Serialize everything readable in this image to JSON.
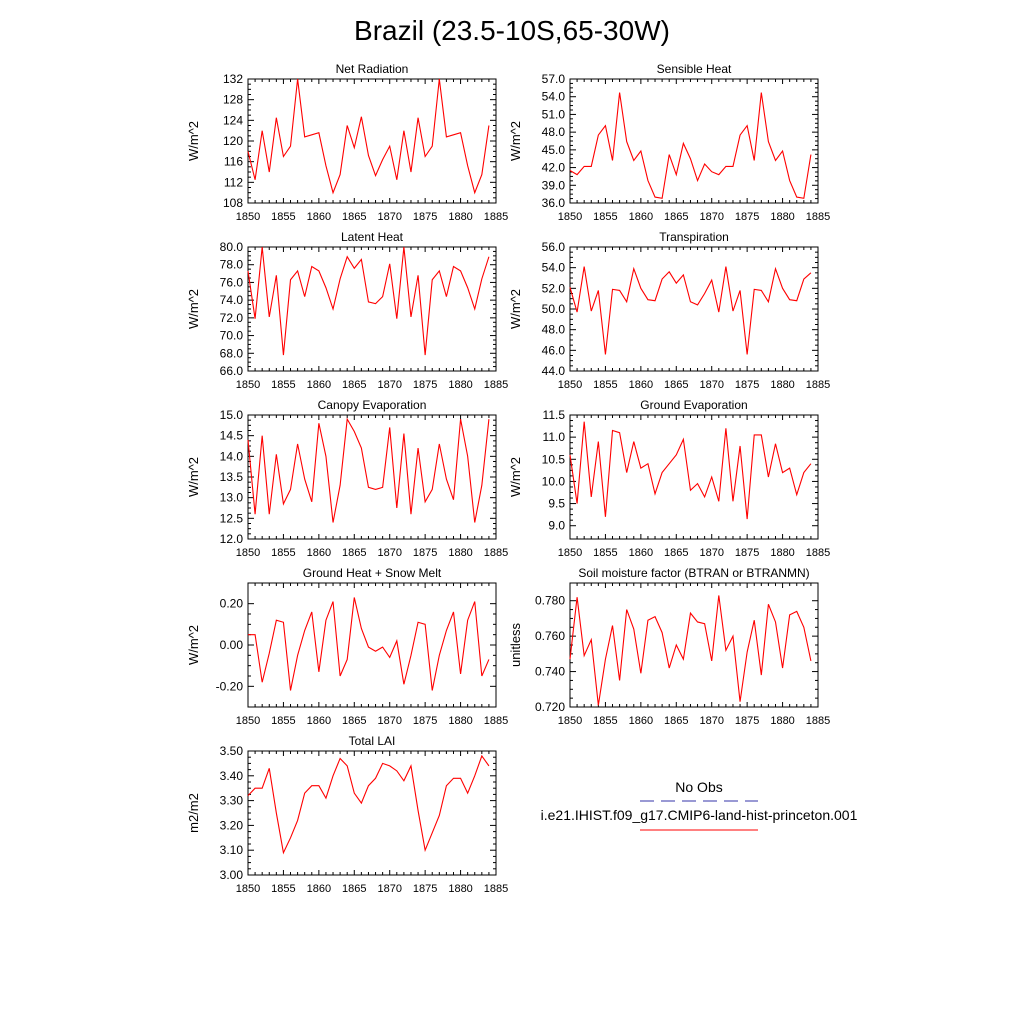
{
  "figure": {
    "title": "Brazil (23.5-10S,65-30W)"
  },
  "legend": {
    "entries": [
      {
        "label": "No Obs",
        "color": "#3333aa",
        "dash": true
      },
      {
        "label": "i.e21.IHIST.f09_g17.CMIP6-land-hist-princeton.001",
        "color": "#ff0000",
        "dash": false
      }
    ]
  },
  "chart_data": [
    {
      "type": "line",
      "title": "Net Radiation",
      "ylabel": "W/m^2",
      "x": [
        1850,
        1851,
        1852,
        1853,
        1854,
        1855,
        1856,
        1857,
        1858,
        1859,
        1860,
        1861,
        1862,
        1863,
        1864,
        1865,
        1866,
        1867,
        1868,
        1869,
        1870,
        1871,
        1872,
        1873,
        1874,
        1875,
        1876,
        1877,
        1878,
        1879,
        1880,
        1881,
        1882,
        1883,
        1884
      ],
      "series": [
        {
          "color": "#ff0000",
          "values": [
            118,
            112.5,
            122,
            114,
            124.5,
            117,
            119,
            132,
            120.8,
            121.2,
            121.6,
            115.2,
            110,
            113.5,
            123,
            118.7,
            124.7,
            117.2,
            113.3,
            116.4,
            119,
            112.5,
            122,
            114,
            124.5,
            117,
            119,
            132,
            120.8,
            121.2,
            121.6,
            115.2,
            110,
            113.5,
            123
          ]
        }
      ],
      "xlim": [
        1850,
        1885
      ],
      "ylim": [
        108,
        132
      ],
      "xticks": [
        "1850",
        "1855",
        "1860",
        "1865",
        "1870",
        "1875",
        "1880",
        "1885"
      ],
      "yticks": [
        "108",
        "112",
        "116",
        "120",
        "124",
        "128",
        "132"
      ]
    },
    {
      "type": "line",
      "title": "Sensible Heat",
      "ylabel": "W/m^2",
      "x": [
        1850,
        1851,
        1852,
        1853,
        1854,
        1855,
        1856,
        1857,
        1858,
        1859,
        1860,
        1861,
        1862,
        1863,
        1864,
        1865,
        1866,
        1867,
        1868,
        1869,
        1870,
        1871,
        1872,
        1873,
        1874,
        1875,
        1876,
        1877,
        1878,
        1879,
        1880,
        1881,
        1882,
        1883,
        1884
      ],
      "series": [
        {
          "color": "#ff0000",
          "values": [
            41.5,
            40.8,
            42.2,
            42.2,
            47.5,
            49.1,
            43.2,
            54.7,
            46.4,
            43.2,
            44.8,
            39.8,
            37,
            36.8,
            44.2,
            40.8,
            46.1,
            43.5,
            39.8,
            42.6,
            41.3,
            40.8,
            42.2,
            42.2,
            47.5,
            49.1,
            43.2,
            54.7,
            46.4,
            43.2,
            44.8,
            39.8,
            37,
            36.8,
            44.2
          ]
        }
      ],
      "xlim": [
        1850,
        1885
      ],
      "ylim": [
        36,
        57
      ],
      "xticks": [
        "1850",
        "1855",
        "1860",
        "1865",
        "1870",
        "1875",
        "1880",
        "1885"
      ],
      "yticks": [
        "36.0",
        "39.0",
        "42.0",
        "45.0",
        "48.0",
        "51.0",
        "54.0",
        "57.0"
      ]
    },
    {
      "type": "line",
      "title": "Latent Heat",
      "ylabel": "W/m^2",
      "x": [
        1850,
        1851,
        1852,
        1853,
        1854,
        1855,
        1856,
        1857,
        1858,
        1859,
        1860,
        1861,
        1862,
        1863,
        1864,
        1865,
        1866,
        1867,
        1868,
        1869,
        1870,
        1871,
        1872,
        1873,
        1874,
        1875,
        1876,
        1877,
        1878,
        1879,
        1880,
        1881,
        1882,
        1883,
        1884
      ],
      "series": [
        {
          "color": "#ff0000",
          "values": [
            77.3,
            71.9,
            80,
            72.1,
            76.8,
            67.8,
            76.3,
            77.3,
            74.4,
            77.8,
            77.3,
            75.4,
            73,
            76.4,
            78.9,
            77.6,
            78.6,
            73.8,
            73.6,
            74.4,
            78.1,
            71.9,
            80,
            72.1,
            76.8,
            67.8,
            76.3,
            77.3,
            74.4,
            77.8,
            77.3,
            75.4,
            73,
            76.4,
            78.9
          ]
        }
      ],
      "xlim": [
        1850,
        1885
      ],
      "ylim": [
        66,
        80
      ],
      "xticks": [
        "1850",
        "1855",
        "1860",
        "1865",
        "1870",
        "1875",
        "1880",
        "1885"
      ],
      "yticks": [
        "66.0",
        "68.0",
        "70.0",
        "72.0",
        "74.0",
        "76.0",
        "78.0",
        "80.0"
      ]
    },
    {
      "type": "line",
      "title": "Transpiration",
      "ylabel": "W/m^2",
      "x": [
        1850,
        1851,
        1852,
        1853,
        1854,
        1855,
        1856,
        1857,
        1858,
        1859,
        1860,
        1861,
        1862,
        1863,
        1864,
        1865,
        1866,
        1867,
        1868,
        1869,
        1870,
        1871,
        1872,
        1873,
        1874,
        1875,
        1876,
        1877,
        1878,
        1879,
        1880,
        1881,
        1882,
        1883,
        1884
      ],
      "series": [
        {
          "color": "#ff0000",
          "values": [
            52.1,
            49.7,
            54.1,
            49.8,
            51.8,
            45.6,
            51.9,
            51.8,
            50.7,
            53.9,
            52,
            50.9,
            50.8,
            52.9,
            53.6,
            52.5,
            53.3,
            50.7,
            50.4,
            51.5,
            52.8,
            49.7,
            54.1,
            49.8,
            51.8,
            45.6,
            51.9,
            51.8,
            50.7,
            53.9,
            52,
            50.9,
            50.8,
            52.9,
            53.5
          ]
        }
      ],
      "xlim": [
        1850,
        1885
      ],
      "ylim": [
        44,
        56
      ],
      "xticks": [
        "1850",
        "1855",
        "1860",
        "1865",
        "1870",
        "1875",
        "1880",
        "1885"
      ],
      "yticks": [
        "44.0",
        "46.0",
        "48.0",
        "50.0",
        "52.0",
        "54.0",
        "56.0"
      ]
    },
    {
      "type": "line",
      "title": "Canopy Evaporation",
      "ylabel": "W/m^2",
      "x": [
        1850,
        1851,
        1852,
        1853,
        1854,
        1855,
        1856,
        1857,
        1858,
        1859,
        1860,
        1861,
        1862,
        1863,
        1864,
        1865,
        1866,
        1867,
        1868,
        1869,
        1870,
        1871,
        1872,
        1873,
        1874,
        1875,
        1876,
        1877,
        1878,
        1879,
        1880,
        1881,
        1882,
        1883,
        1884
      ],
      "series": [
        {
          "color": "#ff0000",
          "values": [
            14.4,
            12.6,
            14.5,
            12.6,
            14.05,
            12.85,
            13.2,
            14.3,
            13.45,
            12.9,
            14.8,
            14,
            12.4,
            13.3,
            14.9,
            14.6,
            14.2,
            13.25,
            13.2,
            13.25,
            14.7,
            12.75,
            14.55,
            12.6,
            14.2,
            12.9,
            13.2,
            14.3,
            13.45,
            12.95,
            14.9,
            14,
            12.4,
            13.3,
            14.9
          ]
        }
      ],
      "xlim": [
        1850,
        1885
      ],
      "ylim": [
        12,
        15
      ],
      "xticks": [
        "1850",
        "1855",
        "1860",
        "1865",
        "1870",
        "1875",
        "1880",
        "1885"
      ],
      "yticks": [
        "12.0",
        "12.5",
        "13.0",
        "13.5",
        "14.0",
        "14.5",
        "15.0"
      ]
    },
    {
      "type": "line",
      "title": "Ground Evaporation",
      "ylabel": "W/m^2",
      "x": [
        1850,
        1851,
        1852,
        1853,
        1854,
        1855,
        1856,
        1857,
        1858,
        1859,
        1860,
        1861,
        1862,
        1863,
        1864,
        1865,
        1866,
        1867,
        1868,
        1869,
        1870,
        1871,
        1872,
        1873,
        1874,
        1875,
        1876,
        1877,
        1878,
        1879,
        1880,
        1881,
        1882,
        1883,
        1884
      ],
      "series": [
        {
          "color": "#ff0000",
          "values": [
            10.6,
            9.5,
            11.35,
            9.65,
            10.9,
            9.2,
            11.15,
            11.1,
            10.2,
            10.9,
            10.3,
            10.4,
            9.72,
            10.2,
            10.4,
            10.6,
            10.95,
            9.8,
            9.95,
            9.65,
            10.1,
            9.55,
            11.2,
            9.55,
            10.8,
            9.15,
            11.05,
            11.05,
            10.1,
            10.85,
            10.2,
            10.3,
            9.7,
            10.2,
            10.4
          ]
        }
      ],
      "xlim": [
        1850,
        1885
      ],
      "ylim": [
        8.7,
        11.5
      ],
      "xticks": [
        "1850",
        "1855",
        "1860",
        "1865",
        "1870",
        "1875",
        "1880",
        "1885"
      ],
      "yticks": [
        "9.0",
        "9.5",
        "10.0",
        "10.5",
        "11.0",
        "11.5"
      ]
    },
    {
      "type": "line",
      "title": "Ground Heat + Snow Melt",
      "ylabel": "W/m^2",
      "x": [
        1850,
        1851,
        1852,
        1853,
        1854,
        1855,
        1856,
        1857,
        1858,
        1859,
        1860,
        1861,
        1862,
        1863,
        1864,
        1865,
        1866,
        1867,
        1868,
        1869,
        1870,
        1871,
        1872,
        1873,
        1874,
        1875,
        1876,
        1877,
        1878,
        1879,
        1880,
        1881,
        1882,
        1883,
        1884
      ],
      "series": [
        {
          "color": "#ff0000",
          "values": [
            0.05,
            0.05,
            -0.18,
            -0.04,
            0.12,
            0.11,
            -0.22,
            -0.05,
            0.07,
            0.16,
            -0.13,
            0.12,
            0.21,
            -0.15,
            -0.07,
            0.23,
            0.08,
            -0.01,
            -0.03,
            -0.01,
            -0.06,
            0.02,
            -0.19,
            -0.05,
            0.11,
            0.1,
            -0.22,
            -0.05,
            0.07,
            0.16,
            -0.14,
            0.12,
            0.21,
            -0.15,
            -0.07
          ]
        }
      ],
      "xlim": [
        1850,
        1885
      ],
      "ylim": [
        -0.3,
        0.3
      ],
      "xticks": [
        "1850",
        "1855",
        "1860",
        "1865",
        "1870",
        "1875",
        "1880",
        "1885"
      ],
      "yticks": [
        "-0.20",
        "0.00",
        "0.20"
      ]
    },
    {
      "type": "line",
      "title": "Soil moisture factor (BTRAN or BTRANMN)",
      "ylabel": "unitless",
      "x": [
        1850,
        1851,
        1852,
        1853,
        1854,
        1855,
        1856,
        1857,
        1858,
        1859,
        1860,
        1861,
        1862,
        1863,
        1864,
        1865,
        1866,
        1867,
        1868,
        1869,
        1870,
        1871,
        1872,
        1873,
        1874,
        1875,
        1876,
        1877,
        1878,
        1879,
        1880,
        1881,
        1882,
        1883,
        1884
      ],
      "series": [
        {
          "color": "#ff0000",
          "values": [
            0.747,
            0.782,
            0.749,
            0.758,
            0.721,
            0.747,
            0.766,
            0.735,
            0.775,
            0.764,
            0.739,
            0.769,
            0.771,
            0.762,
            0.742,
            0.755,
            0.747,
            0.773,
            0.768,
            0.767,
            0.746,
            0.783,
            0.752,
            0.76,
            0.723,
            0.751,
            0.769,
            0.738,
            0.778,
            0.768,
            0.742,
            0.772,
            0.774,
            0.765,
            0.746
          ]
        }
      ],
      "xlim": [
        1850,
        1885
      ],
      "ylim": [
        0.72,
        0.79
      ],
      "xticks": [
        "1850",
        "1855",
        "1860",
        "1865",
        "1870",
        "1875",
        "1880",
        "1885"
      ],
      "yticks": [
        "0.720",
        "0.740",
        "0.760",
        "0.780"
      ]
    },
    {
      "type": "line",
      "title": "Total LAI",
      "ylabel": "m2/m2",
      "x": [
        1850,
        1851,
        1852,
        1853,
        1854,
        1855,
        1856,
        1857,
        1858,
        1859,
        1860,
        1861,
        1862,
        1863,
        1864,
        1865,
        1866,
        1867,
        1868,
        1869,
        1870,
        1871,
        1872,
        1873,
        1874,
        1875,
        1876,
        1877,
        1878,
        1879,
        1880,
        1881,
        1882,
        1883,
        1884
      ],
      "series": [
        {
          "color": "#ff0000",
          "values": [
            3.32,
            3.35,
            3.35,
            3.43,
            3.25,
            3.09,
            3.15,
            3.22,
            3.33,
            3.36,
            3.36,
            3.31,
            3.4,
            3.47,
            3.44,
            3.33,
            3.29,
            3.36,
            3.39,
            3.45,
            3.44,
            3.42,
            3.38,
            3.44,
            3.26,
            3.1,
            3.17,
            3.24,
            3.36,
            3.39,
            3.39,
            3.33,
            3.4,
            3.48,
            3.44
          ]
        }
      ],
      "xlim": [
        1850,
        1885
      ],
      "ylim": [
        3,
        3.5
      ],
      "xticks": [
        "1850",
        "1855",
        "1860",
        "1865",
        "1870",
        "1875",
        "1880",
        "1885"
      ],
      "yticks": [
        "3.00",
        "3.10",
        "3.20",
        "3.30",
        "3.40",
        "3.50"
      ]
    }
  ]
}
